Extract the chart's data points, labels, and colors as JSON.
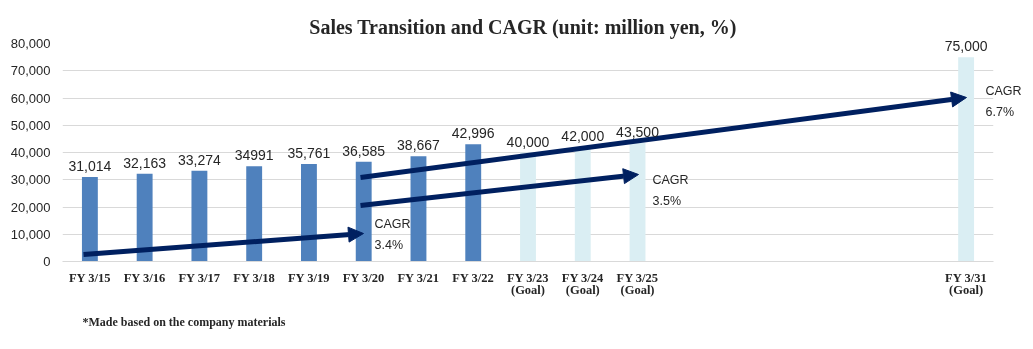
{
  "chart_data": {
    "type": "bar",
    "title": "Sales Transition and CAGR   (unit: million yen, %)",
    "categories": [
      "FY 3/15",
      "FY 3/16",
      "FY 3/17",
      "FY 3/18",
      "FY 3/19",
      "FY 3/20",
      "FY 3/21",
      "FY 3/22",
      "FY 3/23\n(Goal)",
      "FY 3/24\n(Goal)",
      "FY 3/25\n(Goal)",
      null,
      null,
      null,
      null,
      null,
      "FY 3/31\n(Goal)"
    ],
    "series": [
      {
        "values": [
          31014,
          32163,
          33274,
          34991,
          35761,
          36585,
          38667,
          42996,
          40000,
          42000,
          43500,
          null,
          null,
          null,
          null,
          null,
          75000
        ],
        "colors": [
          "#4f81bd",
          "#4f81bd",
          "#4f81bd",
          "#4f81bd",
          "#4f81bd",
          "#4f81bd",
          "#4f81bd",
          "#4f81bd",
          "#daeef3",
          "#daeef3",
          "#daeef3",
          null,
          null,
          null,
          null,
          null,
          "#daeef3"
        ],
        "value_labels": [
          "31,014",
          "32,163",
          "33,274",
          "34991",
          "35,761",
          "36,585",
          "38,667",
          "42,996",
          "40,000",
          "42,000",
          "43,500",
          null,
          null,
          null,
          null,
          null,
          "75,000"
        ]
      }
    ],
    "ylim": [
      0,
      80000
    ],
    "yticks": [
      0,
      {
        "value": 10000,
        "label": "10,000"
      },
      {
        "value": 20000,
        "label": "20,000"
      },
      {
        "value": 30000,
        "label": "30,000"
      },
      {
        "value": 40000,
        "label": "40,000"
      },
      {
        "value": 50000,
        "label": "50,000"
      },
      {
        "value": 60000,
        "label": "60,000"
      },
      {
        "value": 70000,
        "label": "70,000"
      },
      {
        "value": 80000,
        "label": "80,000"
      }
    ],
    "grid": "y",
    "annotations": [
      "CAGR\n3.4%",
      "CAGR\n3.5%",
      "CAGR\n6.7%",
      "*Made based on the company materials"
    ]
  }
}
